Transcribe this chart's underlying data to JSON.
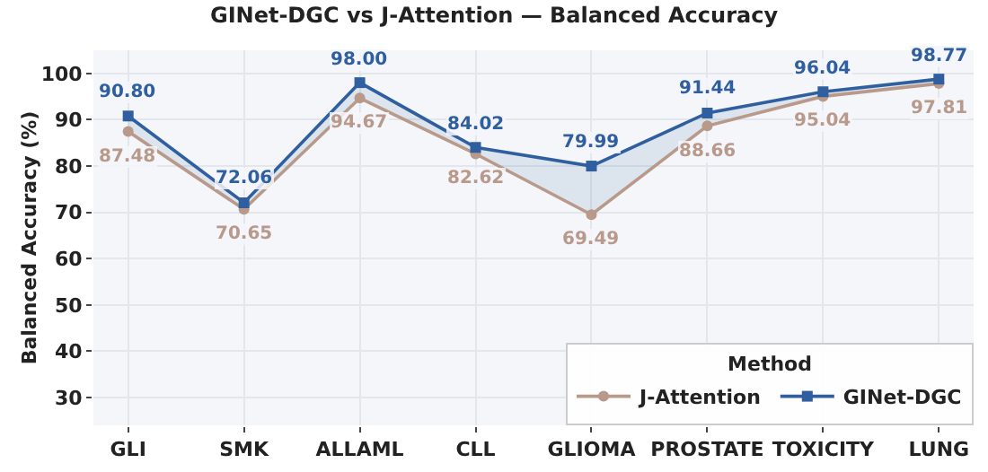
{
  "chart_data": {
    "type": "line",
    "title": "GINet-DGC vs J-Attention — Balanced Accuracy",
    "ylabel": "Balanced Accuracy (%)",
    "legend_title": "Method",
    "categories": [
      "GLI",
      "SMK",
      "ALLAML",
      "CLL",
      "GLIOMA",
      "PROSTATE",
      "TOXICITY",
      "LUNG"
    ],
    "series": [
      {
        "name": "J-Attention",
        "color": "#b8998a",
        "marker": "circle",
        "values": [
          87.48,
          70.65,
          94.67,
          82.62,
          69.49,
          88.66,
          95.04,
          97.81
        ],
        "value_labels": [
          "87.48",
          "70.65",
          "94.67",
          "82.62",
          "69.49",
          "88.66",
          "95.04",
          "97.81"
        ]
      },
      {
        "name": "GINet-DGC",
        "color": "#2f5f9e",
        "marker": "square",
        "values": [
          90.8,
          72.06,
          98.0,
          84.02,
          79.99,
          91.44,
          96.04,
          98.77
        ],
        "lower": [
          87.48,
          70.65,
          94.67,
          82.62,
          69.49,
          88.66,
          95.04,
          97.81
        ],
        "upper": [
          90.8,
          72.06,
          98.0,
          84.02,
          79.99,
          91.44,
          96.04,
          98.77
        ],
        "value_labels": [
          "90.80",
          "72.06",
          "98.00",
          "84.02",
          "79.99",
          "91.44",
          "96.04",
          "98.77"
        ]
      }
    ],
    "ylim": [
      24,
      105
    ],
    "yticks": [
      30,
      40,
      50,
      60,
      70,
      80,
      90,
      100
    ],
    "grid": true,
    "legend": "bottom right",
    "line_style": "solid"
  }
}
